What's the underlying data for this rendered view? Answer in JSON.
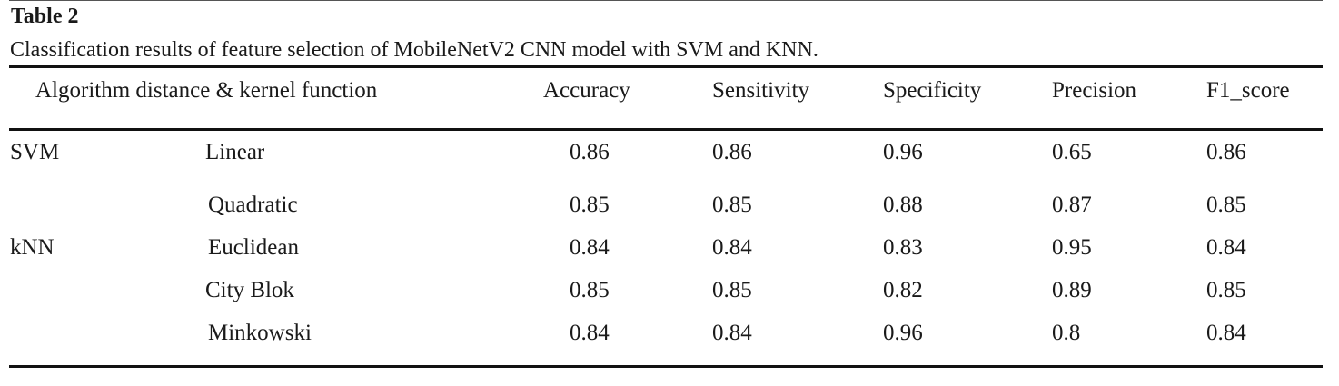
{
  "table": {
    "label": "Table 2",
    "caption": "Classification results of feature selection of MobileNetV2 CNN model with SVM and KNN.",
    "headers": {
      "algorithm": "Algorithm distance & kernel function",
      "accuracy": "Accuracy",
      "sensitivity": "Sensitivity",
      "specificity": "Specificity",
      "precision": "Precision",
      "f1_score": "F1_score"
    },
    "rows": [
      {
        "algorithm": "SVM",
        "function": "Linear",
        "accuracy": "0.86",
        "sensitivity": "0.86",
        "specificity": "0.96",
        "precision": "0.65",
        "f1_score": "0.86"
      },
      {
        "algorithm": "",
        "function": "Quadratic",
        "accuracy": "0.85",
        "sensitivity": "0.85",
        "specificity": "0.88",
        "precision": "0.87",
        "f1_score": "0.85"
      },
      {
        "algorithm": "kNN",
        "function": "Euclidean",
        "accuracy": "0.84",
        "sensitivity": "0.84",
        "specificity": "0.83",
        "precision": "0.95",
        "f1_score": "0.84"
      },
      {
        "algorithm": "",
        "function": "City Blok",
        "accuracy": "0.85",
        "sensitivity": "0.85",
        "specificity": "0.82",
        "precision": "0.89",
        "f1_score": "0.85"
      },
      {
        "algorithm": "",
        "function": "Minkowski",
        "accuracy": "0.84",
        "sensitivity": "0.84",
        "specificity": "0.96",
        "precision": "0.8",
        "f1_score": "0.84"
      }
    ]
  }
}
